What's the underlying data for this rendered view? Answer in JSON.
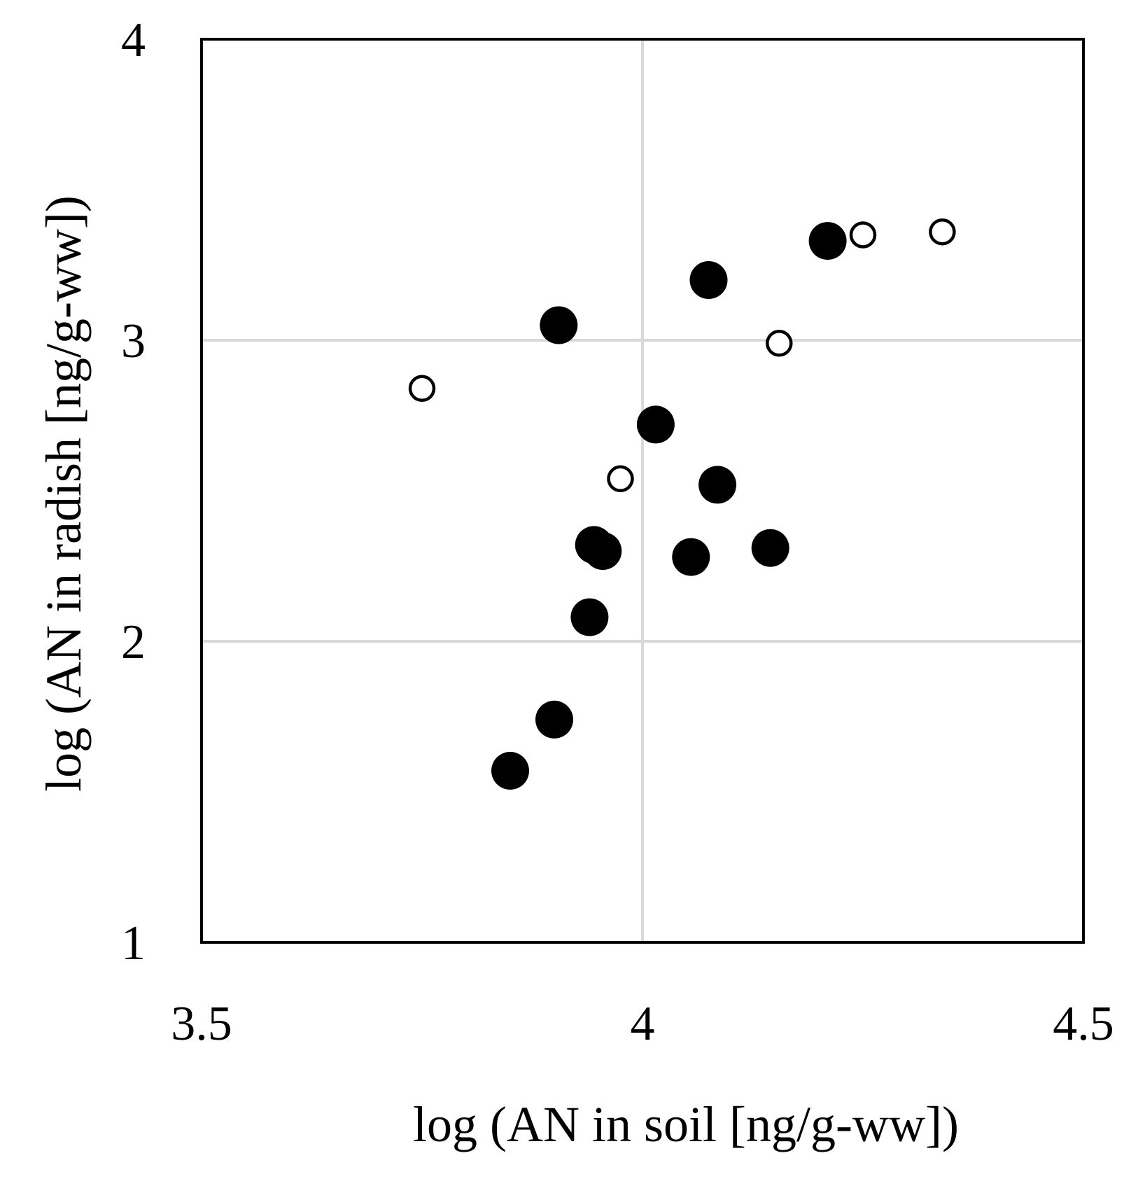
{
  "chart_data": {
    "type": "scatter",
    "title": "",
    "xlabel": "log (AN in soil [ng/g-ww])",
    "ylabel": "log (AN in radish [ng/g-ww])",
    "xlim": [
      3.5,
      4.5
    ],
    "ylim": [
      1,
      4
    ],
    "x_ticks": [
      "3.5",
      "4",
      "4.5"
    ],
    "y_ticks": [
      "1",
      "2",
      "3",
      "4"
    ],
    "grid": true,
    "legend": "none",
    "series": [
      {
        "marker": "filled-circle",
        "color": "#000000",
        "points": [
          {
            "x": 3.85,
            "y": 1.57
          },
          {
            "x": 3.9,
            "y": 1.74
          },
          {
            "x": 3.94,
            "y": 2.08
          },
          {
            "x": 3.945,
            "y": 2.32
          },
          {
            "x": 3.955,
            "y": 2.3
          },
          {
            "x": 3.905,
            "y": 3.05
          },
          {
            "x": 4.015,
            "y": 2.72
          },
          {
            "x": 4.055,
            "y": 2.28
          },
          {
            "x": 4.085,
            "y": 2.52
          },
          {
            "x": 4.075,
            "y": 3.2
          },
          {
            "x": 4.145,
            "y": 2.31
          },
          {
            "x": 4.21,
            "y": 3.33
          }
        ]
      },
      {
        "marker": "open-circle",
        "color": "#000000",
        "points": [
          {
            "x": 3.75,
            "y": 2.84
          },
          {
            "x": 3.975,
            "y": 2.54
          },
          {
            "x": 4.155,
            "y": 2.99
          },
          {
            "x": 4.25,
            "y": 3.35
          },
          {
            "x": 4.34,
            "y": 3.36
          }
        ]
      }
    ]
  }
}
